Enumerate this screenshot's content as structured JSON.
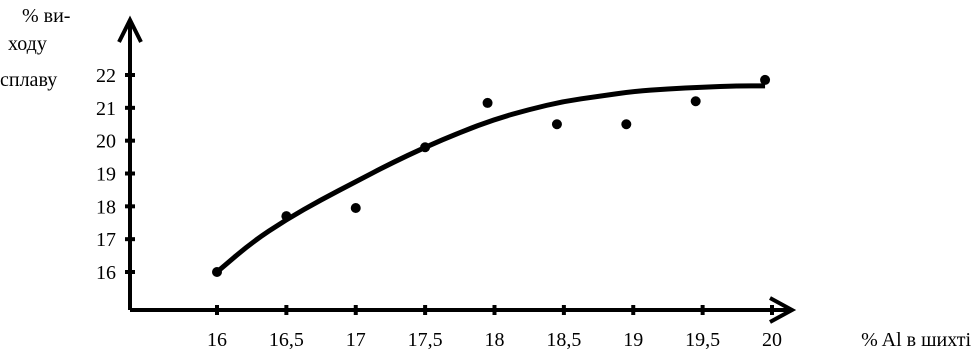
{
  "chart_data": {
    "type": "scatter",
    "title": "",
    "ylabel_lines": [
      "% ви-",
      "ходу",
      "сплаву"
    ],
    "xlabel": "% Al в шихті",
    "x_ticks": [
      {
        "value": 16,
        "label": "16"
      },
      {
        "value": 16.5,
        "label": "16,5"
      },
      {
        "value": 17,
        "label": "17"
      },
      {
        "value": 17.5,
        "label": "17,5"
      },
      {
        "value": 18,
        "label": "18"
      },
      {
        "value": 18.5,
        "label": "18,5"
      },
      {
        "value": 19,
        "label": "19"
      },
      {
        "value": 19.5,
        "label": "19,5"
      },
      {
        "value": 20,
        "label": "20"
      }
    ],
    "y_ticks": [
      {
        "value": 16,
        "label": "16"
      },
      {
        "value": 17,
        "label": "17"
      },
      {
        "value": 18,
        "label": "18"
      },
      {
        "value": 19,
        "label": "19"
      },
      {
        "value": 20,
        "label": "20"
      },
      {
        "value": 21,
        "label": "21"
      },
      {
        "value": 22,
        "label": "22"
      }
    ],
    "xlim": [
      15.4,
      20.2
    ],
    "ylim": [
      15,
      23.6
    ],
    "grid": false,
    "points": [
      {
        "x": 16.0,
        "y": 16.0
      },
      {
        "x": 16.5,
        "y": 17.7
      },
      {
        "x": 17.0,
        "y": 17.95
      },
      {
        "x": 17.5,
        "y": 19.8
      },
      {
        "x": 17.95,
        "y": 21.15
      },
      {
        "x": 18.45,
        "y": 20.5
      },
      {
        "x": 18.95,
        "y": 20.5
      },
      {
        "x": 19.45,
        "y": 21.2
      },
      {
        "x": 19.95,
        "y": 21.85
      }
    ],
    "trend_line": {
      "x": [
        16.0,
        16.25,
        16.5,
        16.75,
        17.0,
        17.25,
        17.5,
        17.75,
        18.0,
        18.25,
        18.5,
        18.75,
        19.0,
        19.25,
        19.5,
        19.75,
        19.95
      ],
      "y": [
        16.0,
        16.9,
        17.6,
        18.2,
        18.75,
        19.3,
        19.8,
        20.25,
        20.65,
        20.95,
        21.2,
        21.35,
        21.5,
        21.58,
        21.63,
        21.67,
        21.67
      ]
    },
    "colors": {
      "ink": "#000000"
    }
  }
}
